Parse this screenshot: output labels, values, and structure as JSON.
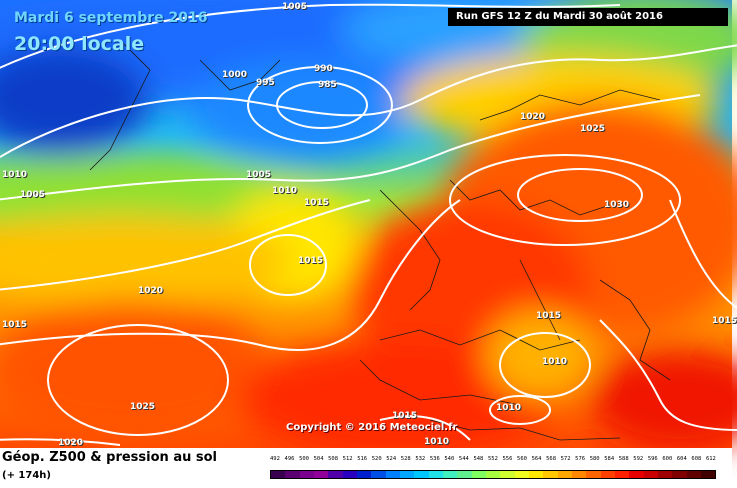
{
  "header": {
    "date": "Mardi 6 septembre 2016",
    "time": "20:00 locale",
    "run": "Run GFS 12 Z du Mardi 30 août 2016"
  },
  "watermark": "Copyright © 2016 Meteociel.fr",
  "footer": {
    "title": "Géop. Z500 & pression au sol",
    "lead_time": "(+ 174h)"
  },
  "isobar_labels": [
    "1005",
    "1000",
    "995",
    "990",
    "985",
    "1010",
    "1005",
    "1005",
    "1010",
    "1015",
    "1015",
    "1020",
    "1020",
    "1025",
    "1030",
    "1015",
    "1010",
    "1015",
    "1015",
    "1025",
    "1020",
    "1015",
    "1010",
    "1010"
  ],
  "scale": {
    "values": [
      "492",
      "496",
      "500",
      "504",
      "508",
      "512",
      "516",
      "520",
      "524",
      "528",
      "532",
      "536",
      "540",
      "544",
      "548",
      "552",
      "556",
      "560",
      "564",
      "568",
      "572",
      "576",
      "580",
      "584",
      "588",
      "592",
      "596",
      "600",
      "604",
      "608",
      "612"
    ],
    "colors": [
      "#3a0050",
      "#5a0070",
      "#7a0090",
      "#90009a",
      "#5000a8",
      "#2a00c0",
      "#0020d0",
      "#0050e8",
      "#0080ff",
      "#00a8ff",
      "#00c8ff",
      "#20e0e8",
      "#40f0c0",
      "#60f090",
      "#80ff60",
      "#a8ff40",
      "#d0ff30",
      "#f0ff20",
      "#ffe800",
      "#ffc800",
      "#ffa800",
      "#ff8800",
      "#ff6400",
      "#ff4000",
      "#ff2000",
      "#e80000",
      "#c80000",
      "#a00000",
      "#800000",
      "#600000",
      "#400000"
    ]
  }
}
